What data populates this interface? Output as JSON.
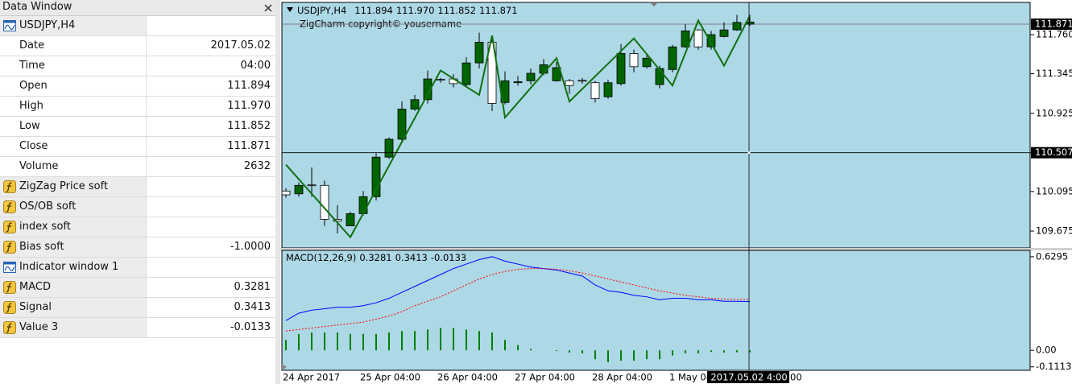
{
  "data_window": {
    "title": "Data Window",
    "windows": [
      {
        "name": "USDJPY,H4",
        "fields": [
          {
            "label": "Date",
            "value": "2017.05.02"
          },
          {
            "label": "Time",
            "value": "04:00"
          },
          {
            "label": "Open",
            "value": "111.894"
          },
          {
            "label": "High",
            "value": "111.970"
          },
          {
            "label": "Low",
            "value": "111.852"
          },
          {
            "label": "Close",
            "value": "111.871"
          },
          {
            "label": "Volume",
            "value": "2632"
          }
        ],
        "indicators": [
          {
            "name": "ZigZag Price soft"
          },
          {
            "name": "OS/OB soft"
          },
          {
            "name": "index soft"
          },
          {
            "name": "Bias soft",
            "value": "-1.0000"
          }
        ]
      },
      {
        "name": "Indicator window 1",
        "indicators": [
          {
            "name": "MACD",
            "value": "0.3281"
          },
          {
            "name": "Signal",
            "value": "0.3413"
          },
          {
            "name": "Value 3",
            "value": "-0.0133"
          }
        ]
      }
    ]
  },
  "chart": {
    "watermark": "ZigCharm copyright© yousername",
    "ylim": [
      109.496,
      112.102
    ],
    "yticks": [
      {
        "value": 111.76,
        "label": "111.760"
      },
      111.345,
      110.925,
      110.507,
      110.095,
      109.675
    ],
    "bid": 111.871,
    "crosshair_price": 110.507,
    "crosshair_time": "2017.05.02 4:00",
    "time_labels": [
      "24 Apr 2017",
      "25 Apr 04:00",
      "26 Apr 04:00",
      "27 Apr 04:00",
      "28 Apr 04:00",
      "1 May 04"
    ],
    "time_tail": "00",
    "bull_color": "#ffffff",
    "bear_color": "#006400",
    "candles": {
      "open": [
        110.06,
        110.16,
        110.16,
        109.8,
        109.78,
        109.86,
        110.04,
        110.46,
        110.65,
        110.97,
        111.07,
        111.29,
        111.28,
        111.24,
        111.46,
        111.68,
        111.03,
        111.27,
        111.26,
        111.35,
        111.44,
        111.41,
        111.22,
        111.27,
        111.08,
        111.25,
        111.56,
        111.42,
        111.51,
        111.4,
        111.63,
        111.8,
        111.63,
        111.76,
        111.81,
        111.89,
        111.894
      ],
      "high": [
        110.13,
        110.19,
        110.35,
        110.21,
        109.95,
        109.88,
        110.1,
        110.5,
        110.67,
        111.05,
        111.12,
        111.38,
        111.3,
        111.34,
        111.52,
        111.78,
        111.72,
        111.37,
        111.32,
        111.4,
        111.5,
        111.47,
        111.29,
        111.3,
        111.27,
        111.28,
        111.66,
        111.6,
        111.55,
        111.43,
        111.65,
        111.87,
        111.82,
        111.8,
        111.89,
        111.97,
        111.97
      ],
      "low": [
        110.03,
        110.04,
        110.04,
        109.73,
        109.65,
        109.73,
        109.84,
        110.0,
        110.44,
        110.62,
        110.95,
        111.03,
        111.25,
        111.2,
        111.2,
        111.4,
        110.95,
        111.02,
        111.22,
        111.23,
        111.33,
        111.26,
        111.13,
        111.24,
        111.04,
        111.08,
        111.22,
        111.36,
        111.4,
        111.19,
        111.36,
        111.62,
        111.6,
        111.6,
        111.73,
        111.8,
        111.852
      ],
      "close": [
        110.1,
        110.07,
        110.165,
        110.16,
        109.8,
        109.73,
        109.86,
        110.04,
        110.46,
        110.65,
        110.97,
        111.07,
        111.285,
        111.29,
        111.23,
        111.46,
        111.68,
        111.04,
        111.25,
        111.27,
        111.35,
        111.27,
        111.27,
        111.275,
        111.25,
        111.1,
        111.24,
        111.56,
        111.42,
        111.23,
        111.39,
        111.63,
        111.81,
        111.63,
        111.74,
        111.81,
        111.871
      ]
    },
    "zigzag": {
      "color": "#107010",
      "bars": [
        0,
        5,
        12,
        15,
        16,
        17,
        21,
        22,
        27,
        30,
        32,
        34,
        36
      ],
      "values": [
        110.38,
        109.61,
        111.38,
        111.12,
        111.75,
        110.88,
        111.51,
        111.05,
        111.72,
        111.22,
        111.91,
        111.43,
        111.96
      ]
    },
    "macd": {
      "label": "MACD(12,26,9)",
      "ylim": [
        -0.1345,
        0.6724
      ],
      "yticks": [
        0.6295,
        {
          "value": 0,
          "label": "0.00"
        },
        -0.1113
      ],
      "main": {
        "color": "#0000ff",
        "values": [
          0.2,
          0.25,
          0.27,
          0.28,
          0.29,
          0.29,
          0.3,
          0.32,
          0.35,
          0.39,
          0.43,
          0.47,
          0.51,
          0.55,
          0.58,
          0.61,
          0.63,
          0.6,
          0.58,
          0.56,
          0.55,
          0.54,
          0.52,
          0.5,
          0.44,
          0.4,
          0.39,
          0.37,
          0.36,
          0.34,
          0.35,
          0.35,
          0.34,
          0.34,
          0.33,
          0.33,
          0.3281
        ]
      },
      "signal": {
        "color": "#ff0000",
        "values": [
          0.13,
          0.14,
          0.15,
          0.16,
          0.17,
          0.18,
          0.19,
          0.21,
          0.23,
          0.26,
          0.3,
          0.33,
          0.36,
          0.4,
          0.44,
          0.48,
          0.51,
          0.53,
          0.545,
          0.55,
          0.55,
          0.545,
          0.535,
          0.52,
          0.5,
          0.48,
          0.46,
          0.44,
          0.42,
          0.4,
          0.385,
          0.37,
          0.36,
          0.35,
          0.345,
          0.343,
          0.3413
        ]
      },
      "histogram": {
        "color": "#008000",
        "values": [
          0.07,
          0.11,
          0.12,
          0.12,
          0.12,
          0.11,
          0.11,
          0.11,
          0.12,
          0.13,
          0.13,
          0.14,
          0.15,
          0.15,
          0.14,
          0.13,
          0.12,
          0.07,
          0.035,
          0.01,
          0,
          -0.005,
          -0.015,
          -0.02,
          -0.06,
          -0.08,
          -0.07,
          -0.07,
          -0.06,
          -0.06,
          -0.035,
          -0.02,
          -0.02,
          -0.01,
          -0.015,
          -0.013,
          -0.0133
        ]
      }
    }
  }
}
